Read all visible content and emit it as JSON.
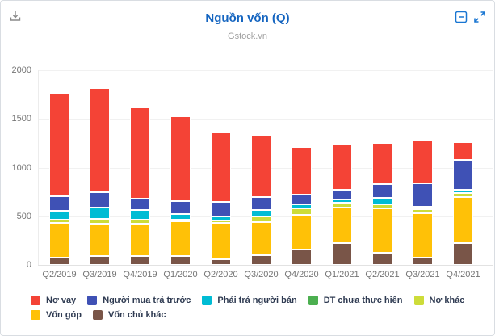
{
  "header": {
    "title": "Nguồn vốn (Q)",
    "subtitle": "Gstock.vn",
    "title_color": "#1565c0",
    "download_icon_color": "#8a8a8a",
    "window_icon_color": "#1976d2"
  },
  "chart_data": {
    "type": "bar",
    "stacked": true,
    "title": "Nguồn vốn (Q)",
    "subtitle": "Gstock.vn",
    "grid": true,
    "legend_position": "bottom",
    "ylim": [
      0,
      2000
    ],
    "yticks": [
      0,
      500,
      1000,
      1500,
      2000
    ],
    "categories": [
      "Q2/2019",
      "Q3/2019",
      "Q4/2019",
      "Q1/2020",
      "Q2/2020",
      "Q3/2020",
      "Q4/2020",
      "Q1/2021",
      "Q2/2021",
      "Q3/2021",
      "Q4/2021"
    ],
    "stack_note": "series listed in legend order; bars stack bottom-to-top in reverse of this order",
    "series": [
      {
        "name": "Nợ vay",
        "color": "#f44336",
        "values": [
          1057,
          1070,
          935,
          872,
          719,
          634,
          491,
          471,
          427,
          445,
          183
        ]
      },
      {
        "name": "Người mua trả trước",
        "color": "#3f51b5",
        "values": [
          156,
          155,
          117,
          133,
          149,
          133,
          104,
          102,
          138,
          240,
          307
        ]
      },
      {
        "name": "Phải trả người bán",
        "color": "#00bcd4",
        "values": [
          87,
          120,
          101,
          61,
          42,
          63,
          42,
          37,
          65,
          30,
          33
        ]
      },
      {
        "name": "DT chưa thực hiện",
        "color": "#4caf50",
        "values": [
          0,
          0,
          0,
          0,
          0,
          0,
          0,
          0,
          0,
          0,
          0
        ]
      },
      {
        "name": "Nợ khác",
        "color": "#cddc39",
        "values": [
          37,
          50,
          37,
          17,
          27,
          58,
          67,
          45,
          45,
          42,
          42
        ]
      },
      {
        "name": "Vốn góp",
        "color": "#ffc107",
        "values": [
          350,
          326,
          330,
          356,
          367,
          343,
          350,
          363,
          458,
          450,
          468
        ]
      },
      {
        "name": "Vốn chủ khác",
        "color": "#795548",
        "values": [
          78,
          94,
          95,
          91,
          61,
          99,
          161,
          227,
          122,
          78,
          227
        ]
      }
    ],
    "totals": [
      1765,
      1815,
      1615,
      1530,
      1365,
      1330,
      1215,
      1245,
      1255,
      1285,
      1260
    ]
  }
}
